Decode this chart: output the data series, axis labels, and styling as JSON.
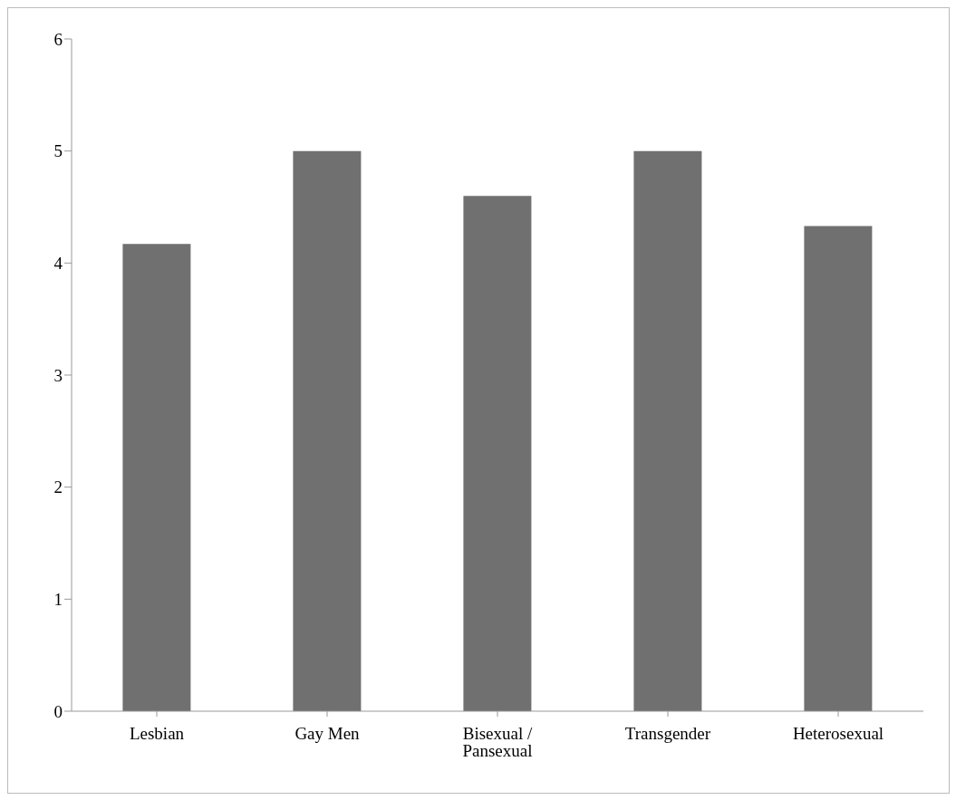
{
  "chart_data": {
    "type": "bar",
    "categories": [
      "Lesbian",
      "Gay Men",
      "Bisexual / Pansexual",
      "Transgender",
      "Heterosexual"
    ],
    "values": [
      4.17,
      5.0,
      4.6,
      5.0,
      4.33
    ],
    "color": "#707070",
    "ylim": [
      0,
      6
    ],
    "yticks": [
      0,
      1,
      2,
      3,
      4,
      5,
      6
    ],
    "grid": false,
    "legend": false
  }
}
